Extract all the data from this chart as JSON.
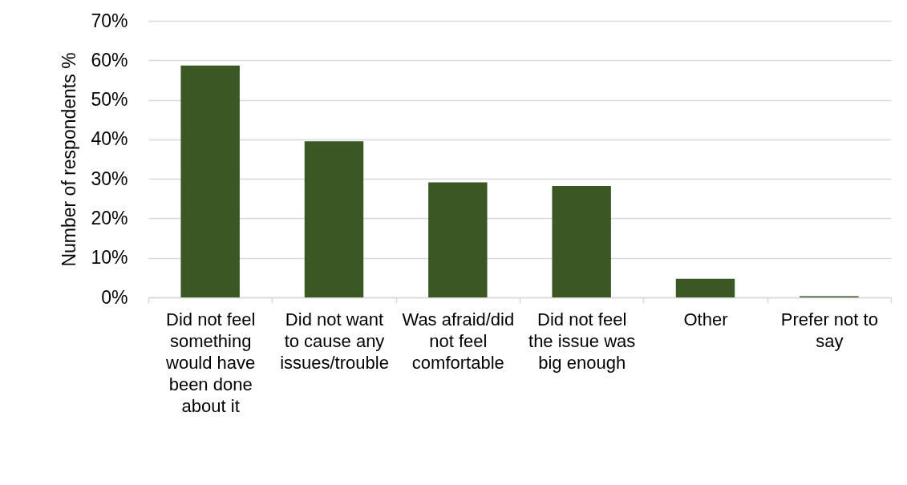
{
  "chart_data": {
    "type": "bar",
    "ylabel": "Number of respondents %",
    "categories": [
      "Did not feel something would have been done about it",
      "Did not want to cause any issues/trouble",
      "Was afraid/did not feel comfortable",
      "Did not feel the issue was big enough",
      "Other",
      "Prefer not to say"
    ],
    "values": [
      58.7,
      39.5,
      29.1,
      28.2,
      4.7,
      0.3
    ],
    "color": "#3b5724",
    "ylim": [
      0,
      70
    ],
    "yticks": [
      {
        "value": 0,
        "label": "0%"
      },
      {
        "value": 10,
        "label": "10%"
      },
      {
        "value": 20,
        "label": "20%"
      },
      {
        "value": 30,
        "label": "30%"
      },
      {
        "value": 40,
        "label": "40%"
      },
      {
        "value": 50,
        "label": "50%"
      },
      {
        "value": 60,
        "label": "60%"
      },
      {
        "value": 70,
        "label": "70%"
      }
    ],
    "grid": "y"
  }
}
